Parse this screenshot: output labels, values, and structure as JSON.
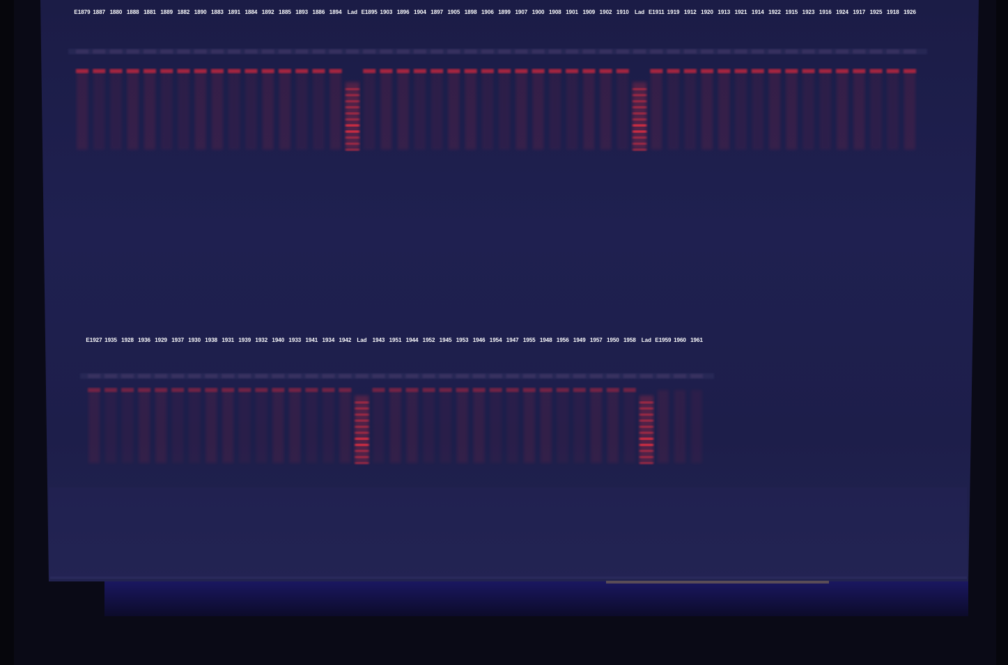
{
  "image": {
    "subject": "agarose gel electrophoresis under UV illumination",
    "colors": {
      "gel": "#1e1f4a",
      "gel_dark": "#141538",
      "band": "#ff2a3a",
      "ladder": "#ff3040",
      "surround": "#06060c",
      "label": "#ffffff"
    }
  },
  "rows": [
    {
      "id": "top",
      "lanes": [
        "E1879",
        "1887",
        "1880",
        "1888",
        "1881",
        "1889",
        "1882",
        "1890",
        "1883",
        "1891",
        "1884",
        "1892",
        "1885",
        "1893",
        "1886",
        "1894",
        "Lad",
        "E1895",
        "1903",
        "1896",
        "1904",
        "1897",
        "1905",
        "1898",
        "1906",
        "1899",
        "1907",
        "1900",
        "1908",
        "1901",
        "1909",
        "1902",
        "1910",
        "Lad",
        "E1911",
        "1919",
        "1912",
        "1920",
        "1913",
        "1921",
        "1914",
        "1922",
        "1915",
        "1923",
        "1916",
        "1924",
        "1917",
        "1925",
        "1918",
        "1926"
      ]
    },
    {
      "id": "bottom",
      "lanes": [
        "E1927",
        "1935",
        "1928",
        "1936",
        "1929",
        "1937",
        "1930",
        "1938",
        "1931",
        "1939",
        "1932",
        "1940",
        "1933",
        "1941",
        "1934",
        "1942",
        "Lad",
        "1943",
        "1951",
        "1944",
        "1952",
        "1945",
        "1953",
        "1946",
        "1954",
        "1947",
        "1955",
        "1948",
        "1956",
        "1949",
        "1957",
        "1950",
        "1958",
        "Lad",
        "E1959",
        "1960",
        "1961"
      ]
    }
  ]
}
